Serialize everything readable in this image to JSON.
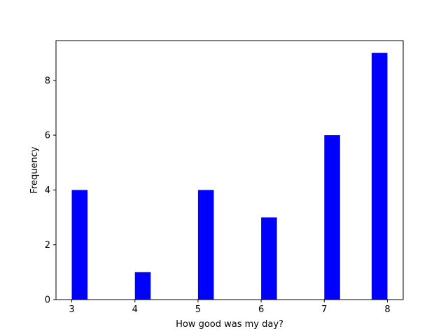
{
  "chart_data": {
    "type": "bar",
    "xlabel": "How good was my day?",
    "ylabel": "Frequency",
    "xlim": [
      2.75,
      8.25
    ],
    "ylim": [
      0,
      9.45
    ],
    "xticks": [
      3,
      4,
      5,
      6,
      7,
      8
    ],
    "yticks": [
      0,
      2,
      4,
      6,
      8
    ],
    "bar_color": "#0000ff",
    "bars": [
      {
        "x_start": 3.0,
        "x_end": 3.25,
        "value": 4
      },
      {
        "x_start": 4.0,
        "x_end": 4.25,
        "value": 1
      },
      {
        "x_start": 5.0,
        "x_end": 5.25,
        "value": 4
      },
      {
        "x_start": 6.0,
        "x_end": 6.25,
        "value": 3
      },
      {
        "x_start": 7.0,
        "x_end": 7.25,
        "value": 6
      },
      {
        "x_start": 7.75,
        "x_end": 8.0,
        "value": 9
      }
    ],
    "grid": false,
    "legend": false
  }
}
